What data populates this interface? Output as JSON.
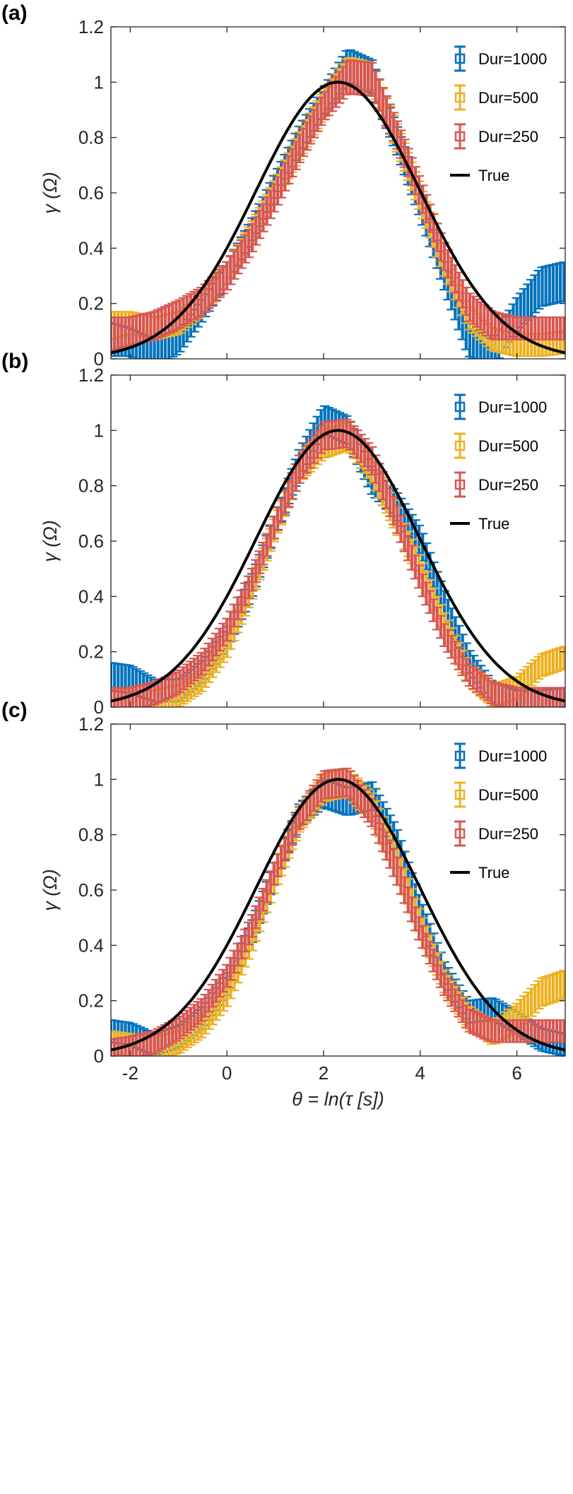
{
  "colors": {
    "dur1000": "#0072BD",
    "dur500": "#EDB120",
    "dur250": "#D95650",
    "true": "#000000",
    "axis": "#262626"
  },
  "chart_data": [
    {
      "type": "line",
      "panel_label": "(a)",
      "ylabel": "γ (Ω)",
      "xlabel": "",
      "xlim": [
        -2.4,
        7.0
      ],
      "ylim": [
        0,
        1.2
      ],
      "xticks": [
        -2,
        0,
        2,
        4,
        6
      ],
      "xtick_labels": [
        "",
        "",
        "",
        "",
        ""
      ],
      "yticks": [
        0,
        0.2,
        0.4,
        0.6,
        0.8,
        1,
        1.2
      ],
      "ytick_labels": [
        "0",
        "0.2",
        "0.4",
        "0.6",
        "0.8",
        "1",
        "1.2"
      ],
      "legend_position": "top-right",
      "legend": [
        "Dur=1000",
        "Dur=500",
        "Dur=250",
        "True"
      ],
      "x": [
        -2.4,
        -2.0,
        -1.5,
        -1.0,
        -0.5,
        0.0,
        0.5,
        1.0,
        1.5,
        2.0,
        2.5,
        3.0,
        3.5,
        4.0,
        4.5,
        5.0,
        5.5,
        6.0,
        6.5,
        7.0
      ],
      "series": [
        {
          "name": "Dur=1000",
          "color_key": "dur1000",
          "values": [
            0.07,
            0.06,
            0.02,
            0.06,
            0.18,
            0.31,
            0.46,
            0.63,
            0.79,
            0.93,
            1.06,
            1.02,
            0.8,
            0.56,
            0.3,
            0.06,
            0.02,
            0.16,
            0.26,
            0.28
          ],
          "errors": [
            0.06,
            0.05,
            0.05,
            0.04,
            0.04,
            0.04,
            0.04,
            0.04,
            0.05,
            0.05,
            0.06,
            0.06,
            0.05,
            0.05,
            0.05,
            0.05,
            0.05,
            0.06,
            0.07,
            0.07
          ]
        },
        {
          "name": "Dur=500",
          "color_key": "dur500",
          "values": [
            0.12,
            0.13,
            0.11,
            0.13,
            0.2,
            0.31,
            0.45,
            0.61,
            0.77,
            0.92,
            1.04,
            1.02,
            0.81,
            0.58,
            0.34,
            0.15,
            0.07,
            0.05,
            0.05,
            0.06
          ],
          "errors": [
            0.05,
            0.04,
            0.04,
            0.04,
            0.04,
            0.04,
            0.04,
            0.04,
            0.05,
            0.05,
            0.05,
            0.05,
            0.05,
            0.05,
            0.04,
            0.04,
            0.04,
            0.04,
            0.04,
            0.04
          ]
        },
        {
          "name": "Dur=250",
          "color_key": "dur250",
          "values": [
            0.09,
            0.1,
            0.12,
            0.16,
            0.21,
            0.3,
            0.43,
            0.59,
            0.76,
            0.91,
            1.02,
            1.01,
            0.82,
            0.6,
            0.37,
            0.19,
            0.12,
            0.11,
            0.11,
            0.11
          ],
          "errors": [
            0.06,
            0.05,
            0.05,
            0.05,
            0.05,
            0.05,
            0.05,
            0.05,
            0.05,
            0.05,
            0.06,
            0.06,
            0.05,
            0.05,
            0.05,
            0.05,
            0.05,
            0.04,
            0.04,
            0.04
          ]
        },
        {
          "name": "True",
          "color_key": "true",
          "gaussian": {
            "mu": 2.3,
            "sigma": 1.7,
            "amp": 1.0
          }
        }
      ]
    },
    {
      "type": "line",
      "panel_label": "(b)",
      "ylabel": "γ (Ω)",
      "xlabel": "",
      "xlim": [
        -2.4,
        7.0
      ],
      "ylim": [
        0,
        1.2
      ],
      "xticks": [
        -2,
        0,
        2,
        4,
        6
      ],
      "xtick_labels": [
        "",
        "",
        "",
        "",
        ""
      ],
      "yticks": [
        0,
        0.2,
        0.4,
        0.6,
        0.8,
        1,
        1.2
      ],
      "ytick_labels": [
        "0",
        "0.2",
        "0.4",
        "0.6",
        "0.8",
        "1",
        "1.2"
      ],
      "legend_position": "top-right",
      "legend": [
        "Dur=1000",
        "Dur=500",
        "Dur=250",
        "True"
      ],
      "x": [
        -2.4,
        -2.0,
        -1.5,
        -1.0,
        -0.5,
        0.0,
        0.5,
        1.0,
        1.5,
        2.0,
        2.5,
        3.0,
        3.5,
        4.0,
        4.5,
        5.0,
        5.5,
        6.0,
        6.5,
        7.0
      ],
      "series": [
        {
          "name": "Dur=1000",
          "color_key": "dur1000",
          "values": [
            0.11,
            0.1,
            0.06,
            0.06,
            0.13,
            0.25,
            0.43,
            0.66,
            0.88,
            1.04,
            1.0,
            0.82,
            0.73,
            0.6,
            0.38,
            0.17,
            0.05,
            0.02,
            0.02,
            0.03
          ],
          "errors": [
            0.05,
            0.05,
            0.04,
            0.04,
            0.04,
            0.04,
            0.04,
            0.04,
            0.05,
            0.05,
            0.05,
            0.05,
            0.05,
            0.05,
            0.04,
            0.04,
            0.04,
            0.04,
            0.04,
            0.04
          ]
        },
        {
          "name": "Dur=500",
          "color_key": "dur500",
          "values": [
            0.03,
            0.02,
            0.02,
            0.04,
            0.1,
            0.22,
            0.42,
            0.65,
            0.86,
            0.95,
            0.98,
            0.86,
            0.68,
            0.5,
            0.3,
            0.12,
            0.04,
            0.07,
            0.15,
            0.18
          ],
          "errors": [
            0.04,
            0.04,
            0.04,
            0.04,
            0.04,
            0.04,
            0.04,
            0.04,
            0.05,
            0.05,
            0.05,
            0.05,
            0.05,
            0.04,
            0.04,
            0.04,
            0.04,
            0.04,
            0.04,
            0.04
          ]
        },
        {
          "name": "Dur=250",
          "color_key": "dur250",
          "values": [
            0.03,
            0.03,
            0.05,
            0.09,
            0.16,
            0.28,
            0.45,
            0.66,
            0.86,
            0.98,
            0.99,
            0.89,
            0.69,
            0.46,
            0.26,
            0.12,
            0.05,
            0.03,
            0.03,
            0.03
          ],
          "errors": [
            0.04,
            0.04,
            0.04,
            0.04,
            0.04,
            0.04,
            0.04,
            0.04,
            0.05,
            0.05,
            0.05,
            0.05,
            0.05,
            0.04,
            0.04,
            0.04,
            0.04,
            0.04,
            0.04,
            0.04
          ]
        },
        {
          "name": "True",
          "color_key": "true",
          "gaussian": {
            "mu": 2.3,
            "sigma": 1.7,
            "amp": 1.0
          }
        }
      ]
    },
    {
      "type": "line",
      "panel_label": "(c)",
      "ylabel": "γ (Ω)",
      "xlabel": "θ = ln(τ [s])",
      "xlim": [
        -2.4,
        7.0
      ],
      "ylim": [
        0,
        1.2
      ],
      "xticks": [
        -2,
        0,
        2,
        4,
        6
      ],
      "xtick_labels": [
        "-2",
        "0",
        "2",
        "4",
        "6"
      ],
      "yticks": [
        0,
        0.2,
        0.4,
        0.6,
        0.8,
        1,
        1.2
      ],
      "ytick_labels": [
        "0",
        "0.2",
        "0.4",
        "0.6",
        "0.8",
        "1",
        "1.2"
      ],
      "legend_position": "top-right",
      "legend": [
        "Dur=1000",
        "Dur=500",
        "Dur=250",
        "True"
      ],
      "x": [
        -2.4,
        -2.0,
        -1.5,
        -1.0,
        -0.5,
        0.0,
        0.5,
        1.0,
        1.5,
        2.0,
        2.5,
        3.0,
        3.5,
        4.0,
        4.5,
        5.0,
        5.5,
        6.0,
        6.5,
        7.0
      ],
      "series": [
        {
          "name": "Dur=1000",
          "color_key": "dur1000",
          "values": [
            0.09,
            0.08,
            0.04,
            0.07,
            0.14,
            0.26,
            0.44,
            0.67,
            0.87,
            0.95,
            0.92,
            0.94,
            0.78,
            0.53,
            0.3,
            0.16,
            0.17,
            0.12,
            0.06,
            0.04
          ],
          "errors": [
            0.04,
            0.04,
            0.04,
            0.04,
            0.04,
            0.04,
            0.04,
            0.04,
            0.04,
            0.05,
            0.05,
            0.05,
            0.05,
            0.04,
            0.04,
            0.04,
            0.04,
            0.04,
            0.04,
            0.04
          ]
        },
        {
          "name": "Dur=500",
          "color_key": "dur500",
          "values": [
            0.05,
            0.04,
            0.03,
            0.05,
            0.11,
            0.22,
            0.41,
            0.64,
            0.85,
            0.97,
            0.99,
            0.9,
            0.71,
            0.48,
            0.27,
            0.14,
            0.08,
            0.14,
            0.23,
            0.26
          ],
          "errors": [
            0.04,
            0.04,
            0.04,
            0.04,
            0.04,
            0.04,
            0.04,
            0.04,
            0.04,
            0.05,
            0.05,
            0.05,
            0.05,
            0.04,
            0.04,
            0.04,
            0.04,
            0.05,
            0.05,
            0.05
          ]
        },
        {
          "name": "Dur=250",
          "color_key": "dur250",
          "values": [
            0.02,
            0.03,
            0.05,
            0.1,
            0.17,
            0.29,
            0.46,
            0.67,
            0.86,
            0.98,
            0.99,
            0.88,
            0.68,
            0.45,
            0.26,
            0.13,
            0.09,
            0.09,
            0.09,
            0.09
          ],
          "errors": [
            0.04,
            0.04,
            0.04,
            0.04,
            0.04,
            0.04,
            0.04,
            0.04,
            0.04,
            0.05,
            0.05,
            0.05,
            0.05,
            0.04,
            0.04,
            0.04,
            0.04,
            0.04,
            0.04,
            0.04
          ]
        },
        {
          "name": "True",
          "color_key": "true",
          "gaussian": {
            "mu": 2.3,
            "sigma": 1.7,
            "amp": 1.0
          }
        }
      ]
    }
  ]
}
